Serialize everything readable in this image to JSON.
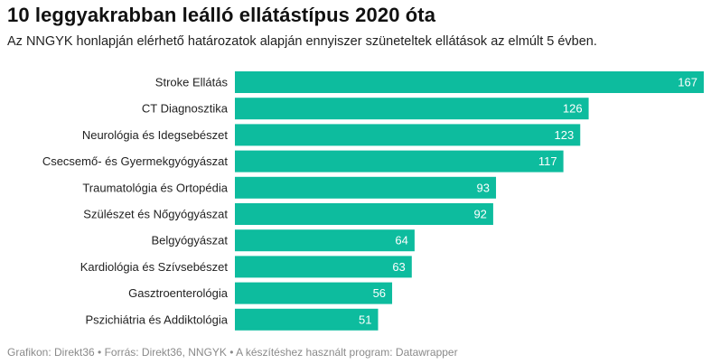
{
  "chart_data": {
    "type": "bar",
    "orientation": "horizontal",
    "title": "10 leggyakrabban leálló ellátástípus 2020 óta",
    "subtitle": "Az NNGYK honlapján elérhető határozatok alapján ennyiszer szüneteltek ellátások az elmúlt 5 évben.",
    "categories": [
      "Stroke Ellátás",
      "CT Diagnosztika",
      "Neurológia és Idegsebészet",
      "Csecsemő- és Gyermekgyógyászat",
      "Traumatológia és Ortopédia",
      "Szülészet és Nőgyógyászat",
      "Belgyógyászat",
      "Kardiológia és Szívsebészet",
      "Gasztroenterológia",
      "Pszichiátria és Addiktológia"
    ],
    "values": [
      167,
      126,
      123,
      117,
      93,
      92,
      64,
      63,
      56,
      51
    ],
    "xlim": [
      0,
      167
    ],
    "grid": false,
    "bar_color": "#0dbc9e",
    "footer": "Grafikon: Direkt36 • Forrás: Direkt36, NNGYK • A készítéshez használt program: Datawrapper"
  }
}
